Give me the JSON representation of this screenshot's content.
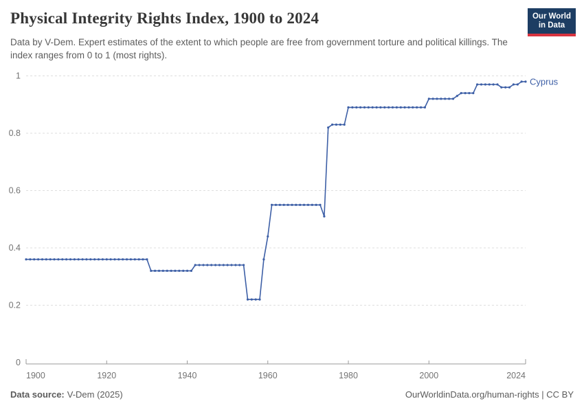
{
  "header": {
    "title": "Physical Integrity Rights Index, 1900 to 2024",
    "subtitle": "Data by V-Dem. Expert estimates of the extent to which people are free from government torture and political killings. The index ranges from 0 to 1 (most rights).",
    "logo": {
      "line1": "Our World",
      "line2": "in Data"
    }
  },
  "footer": {
    "source_label": "Data source:",
    "source_value": "V-Dem (2025)",
    "credit": "OurWorldinData.org/human-rights | CC BY"
  },
  "colors": {
    "series": "#3d5fa6",
    "grid": "#dedede",
    "axis": "#999999",
    "tick_text": "#737373",
    "logo_bg": "#1d3d63",
    "logo_stripe": "#d8333f"
  },
  "chart_data": {
    "type": "line",
    "title": "Physical Integrity Rights Index, 1900 to 2024",
    "xlabel": "",
    "ylabel": "",
    "xlim": [
      1900,
      2024
    ],
    "ylim": [
      0,
      1
    ],
    "xticks": [
      1900,
      1920,
      1940,
      1960,
      1980,
      2000,
      2024
    ],
    "yticks": [
      0,
      0.2,
      0.4,
      0.6,
      0.8,
      1
    ],
    "grid": "horizontal-dashed",
    "legend_position": "line-end-label",
    "series": [
      {
        "name": "Cyprus",
        "start_year": 1900,
        "end_year": 2024,
        "values": [
          0.36,
          0.36,
          0.36,
          0.36,
          0.36,
          0.36,
          0.36,
          0.36,
          0.36,
          0.36,
          0.36,
          0.36,
          0.36,
          0.36,
          0.36,
          0.36,
          0.36,
          0.36,
          0.36,
          0.36,
          0.36,
          0.36,
          0.36,
          0.36,
          0.36,
          0.36,
          0.36,
          0.36,
          0.36,
          0.36,
          0.36,
          0.32,
          0.32,
          0.32,
          0.32,
          0.32,
          0.32,
          0.32,
          0.32,
          0.32,
          0.32,
          0.32,
          0.34,
          0.34,
          0.34,
          0.34,
          0.34,
          0.34,
          0.34,
          0.34,
          0.34,
          0.34,
          0.34,
          0.34,
          0.34,
          0.22,
          0.22,
          0.22,
          0.22,
          0.36,
          0.44,
          0.55,
          0.55,
          0.55,
          0.55,
          0.55,
          0.55,
          0.55,
          0.55,
          0.55,
          0.55,
          0.55,
          0.55,
          0.55,
          0.51,
          0.82,
          0.83,
          0.83,
          0.83,
          0.83,
          0.89,
          0.89,
          0.89,
          0.89,
          0.89,
          0.89,
          0.89,
          0.89,
          0.89,
          0.89,
          0.89,
          0.89,
          0.89,
          0.89,
          0.89,
          0.89,
          0.89,
          0.89,
          0.89,
          0.89,
          0.92,
          0.92,
          0.92,
          0.92,
          0.92,
          0.92,
          0.92,
          0.93,
          0.94,
          0.94,
          0.94,
          0.94,
          0.97,
          0.97,
          0.97,
          0.97,
          0.97,
          0.97,
          0.96,
          0.96,
          0.96,
          0.97,
          0.97,
          0.98,
          0.98
        ]
      }
    ]
  }
}
